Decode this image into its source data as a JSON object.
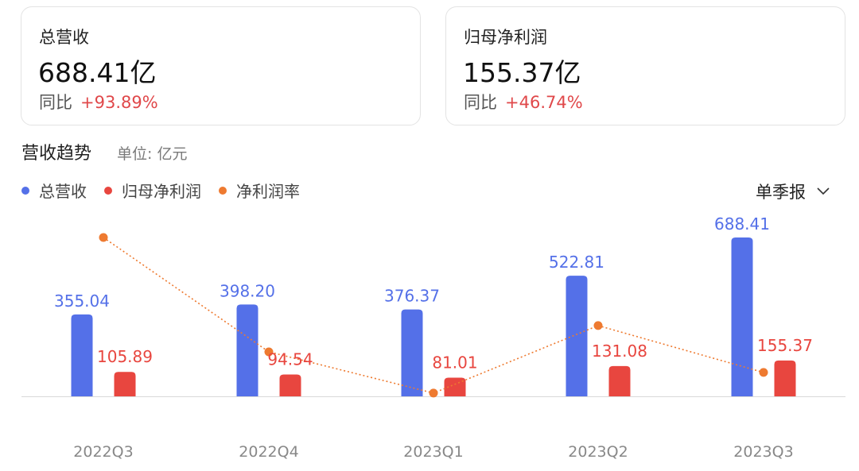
{
  "cards": [
    {
      "title": "总营收",
      "value": "688.41亿",
      "yoy_label": "同比",
      "yoy_value": "+93.89%"
    },
    {
      "title": "归母净利润",
      "value": "155.37亿",
      "yoy_label": "同比",
      "yoy_value": "+46.74%"
    }
  ],
  "trend": {
    "title": "营收趋势",
    "unit": "单位: 亿元"
  },
  "legend": [
    {
      "label": "总营收",
      "color": "#5470e8"
    },
    {
      "label": "归母净利润",
      "color": "#e8463f"
    },
    {
      "label": "净利润率",
      "color": "#ee7a30"
    }
  ],
  "period_select": {
    "value": "单季报",
    "icon": "chevron-down-icon"
  },
  "colors": {
    "revenue": "#5470e8",
    "profit": "#e8463f",
    "margin": "#ee7a30",
    "negative": "#e0484a"
  },
  "chart_data": {
    "type": "bar",
    "categories": [
      "2022Q3",
      "2022Q4",
      "2023Q1",
      "2023Q2",
      "2023Q3"
    ],
    "series": [
      {
        "name": "总营收",
        "values": [
          355.04,
          398.2,
          376.37,
          522.81,
          688.41
        ],
        "labels": [
          "355.04",
          "398.20",
          "376.37",
          "522.81",
          "688.41"
        ]
      },
      {
        "name": "归母净利润",
        "values": [
          105.89,
          94.54,
          81.01,
          131.08,
          155.37
        ],
        "labels": [
          "105.89",
          "94.54",
          "81.01",
          "131.08",
          "155.37"
        ]
      },
      {
        "name": "净利润率",
        "type": "line",
        "values": [
          29.8,
          23.7,
          21.5,
          25.1,
          22.6
        ]
      }
    ],
    "ylim": [
      0,
      700
    ],
    "grid": false,
    "legend_position": "top-left"
  }
}
